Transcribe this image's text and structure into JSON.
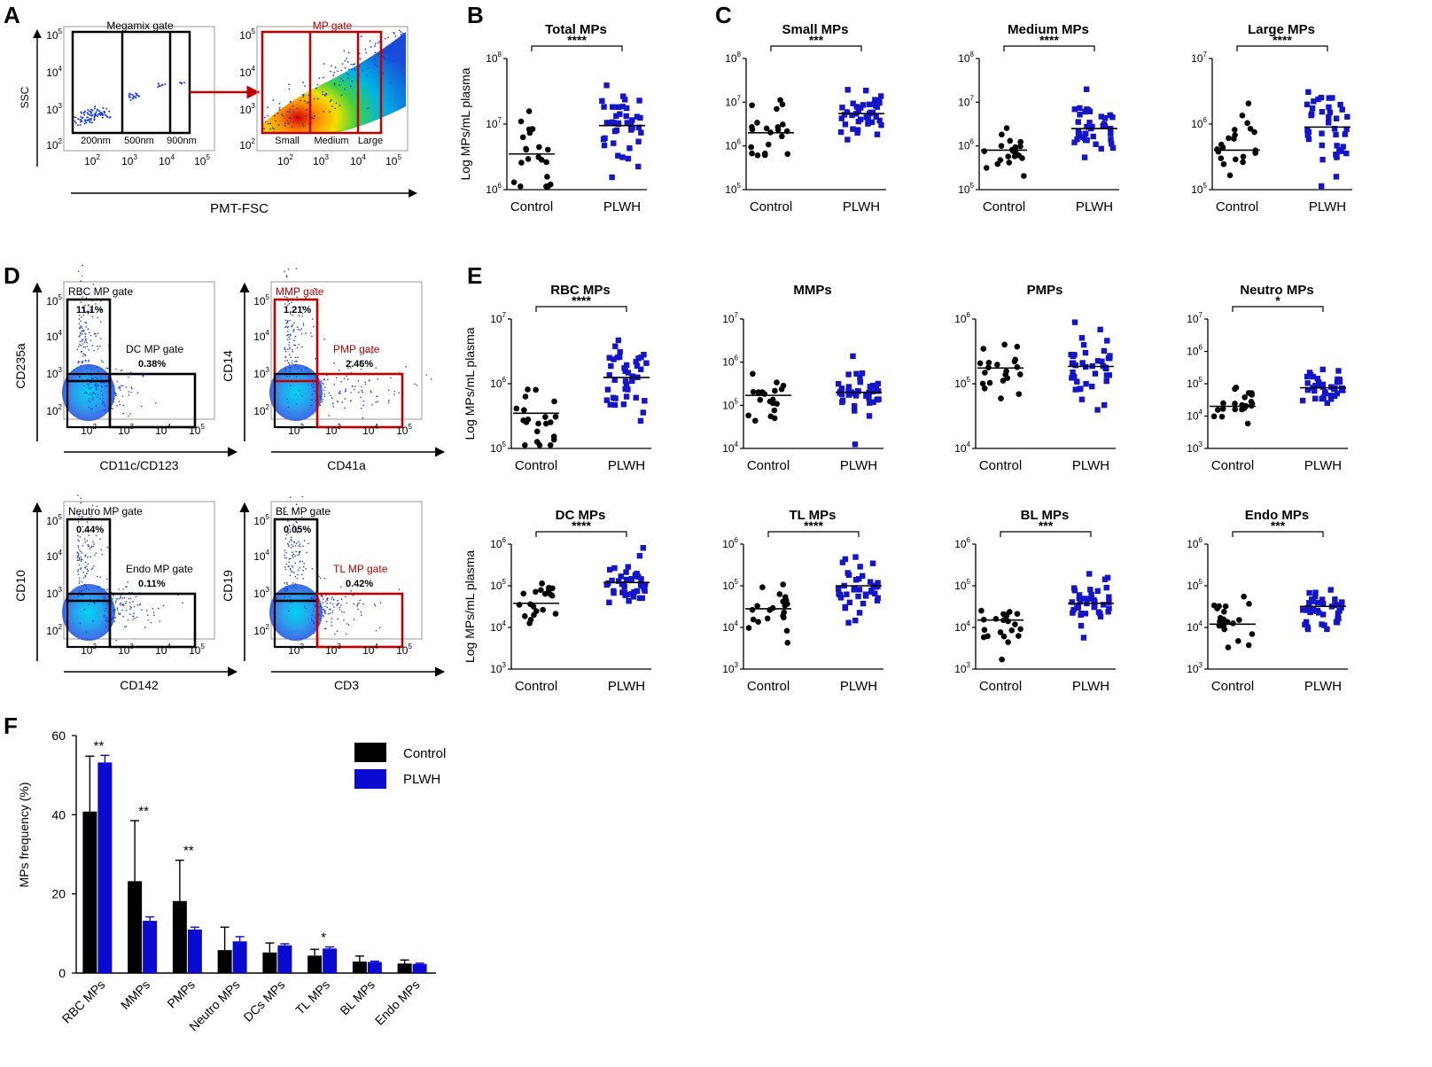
{
  "panel_labels": {
    "A": "A",
    "B": "B",
    "C": "C",
    "D": "D",
    "E": "E",
    "F": "F"
  },
  "panel_a": {
    "y_label": "SSC",
    "x_label": "PMT-FSC",
    "left_title": "Megamix gate",
    "left_bins": [
      "200nm",
      "500nm",
      "900nm"
    ],
    "right_title": "MP gate",
    "right_bins": [
      "Small",
      "Medium",
      "Large"
    ],
    "ticks": [
      "10²",
      "10³",
      "10⁴",
      "10⁵"
    ]
  },
  "groups": [
    "Control",
    "PLWH"
  ],
  "y_axis_label": "Log MPs/mL plasma",
  "panel_b": [
    {
      "title": "Total MPs",
      "sig": "****",
      "ymin_exp": 6,
      "ymax_exp": 8,
      "control_median": 3500000.0,
      "plwh_median": 9500000.0
    }
  ],
  "panel_c": [
    {
      "title": "Small MPs",
      "sig": "***",
      "ymin_exp": 5,
      "ymax_exp": 8,
      "control_median": 2000000.0,
      "plwh_median": 5500000.0
    },
    {
      "title": "Medium MPs",
      "sig": "****",
      "ymin_exp": 5,
      "ymax_exp": 8,
      "control_median": 800000.0,
      "plwh_median": 2500000.0
    },
    {
      "title": "Large MPs",
      "sig": "****",
      "ymin_exp": 5,
      "ymax_exp": 7,
      "control_median": 400000.0,
      "plwh_median": 900000.0
    }
  ],
  "panel_d": [
    {
      "y_label": "CD235a",
      "x_label": "CD11c/CD123",
      "gate1": "RBC MP gate",
      "pct1": "11,1%",
      "gate2": "DC MP gate",
      "pct2": "0.38%",
      "color": "black"
    },
    {
      "y_label": "CD14",
      "x_label": "CD41a",
      "gate1": "MMP gate",
      "pct1": "1.21%",
      "gate2": "PMP gate",
      "pct2": "2.46%",
      "color": "red"
    },
    {
      "y_label": "CD10",
      "x_label": "CD142",
      "gate1": "Neutro MP gate",
      "pct1": "0.44%",
      "gate2": "Endo MP gate",
      "pct2": "0.11%",
      "color": "black"
    },
    {
      "y_label": "CD19",
      "x_label": "CD3",
      "gate1": "BL MP gate",
      "pct1": "0.05%",
      "gate2": "TL MP gate",
      "pct2": "0.42%",
      "color": "mixed"
    }
  ],
  "panel_e": [
    {
      "title": "RBC MPs",
      "sig": "****",
      "ymin_exp": 5,
      "ymax_exp": 7,
      "control_median": 350000.0,
      "plwh_median": 1250000.0
    },
    {
      "title": "MMPs",
      "sig": "",
      "ymin_exp": 4,
      "ymax_exp": 7,
      "control_median": 170000.0,
      "plwh_median": 200000.0
    },
    {
      "title": "PMPs",
      "sig": "",
      "ymin_exp": 4,
      "ymax_exp": 6,
      "control_median": 175000.0,
      "plwh_median": 185000.0
    },
    {
      "title": "Neutro MPs",
      "sig": "*",
      "ymin_exp": 3,
      "ymax_exp": 7,
      "control_median": 20000.0,
      "plwh_median": 75000.0
    },
    {
      "title": "DC MPs",
      "sig": "****",
      "ymin_exp": 3,
      "ymax_exp": 6,
      "control_median": 38000.0,
      "plwh_median": 120000.0
    },
    {
      "title": "TL MPs",
      "sig": "****",
      "ymin_exp": 3,
      "ymax_exp": 6,
      "control_median": 28000.0,
      "plwh_median": 100000.0
    },
    {
      "title": "BL MPs",
      "sig": "***",
      "ymin_exp": 3,
      "ymax_exp": 6,
      "control_median": 15000.0,
      "plwh_median": 38000.0
    },
    {
      "title": "Endo MPs",
      "sig": "***",
      "ymin_exp": 3,
      "ymax_exp": 6,
      "control_median": 12000.0,
      "plwh_median": 32000.0
    }
  ],
  "chart_data": {
    "type": "bar",
    "title": "",
    "xlabel": "",
    "ylabel": "MPs frequency (%)",
    "ylim": [
      0,
      60
    ],
    "yticks": [
      0,
      20,
      40,
      60
    ],
    "categories": [
      "RBC MPs",
      "MMPs",
      "PMPs",
      "Neutro MPs",
      "DCs MPs",
      "TL MPs",
      "BL MPs",
      "Endo MPs"
    ],
    "series": [
      {
        "name": "Control",
        "color": "#000000",
        "values": [
          40.8,
          23.2,
          18.2,
          5.8,
          5.2,
          4.4,
          2.9,
          2.4
        ],
        "errors": [
          14.0,
          15.3,
          10.3,
          5.8,
          2.4,
          1.6,
          1.4,
          0.9
        ]
      },
      {
        "name": "PLWH",
        "color": "#0a0ad0",
        "values": [
          53.2,
          13.2,
          11.0,
          8.0,
          7.0,
          6.2,
          2.8,
          2.3
        ],
        "errors": [
          1.8,
          1.0,
          0.6,
          1.2,
          0.4,
          0.4,
          0.2,
          0.2
        ]
      }
    ],
    "significance": [
      "**",
      "**",
      "**",
      "",
      "",
      "*",
      "",
      ""
    ]
  }
}
